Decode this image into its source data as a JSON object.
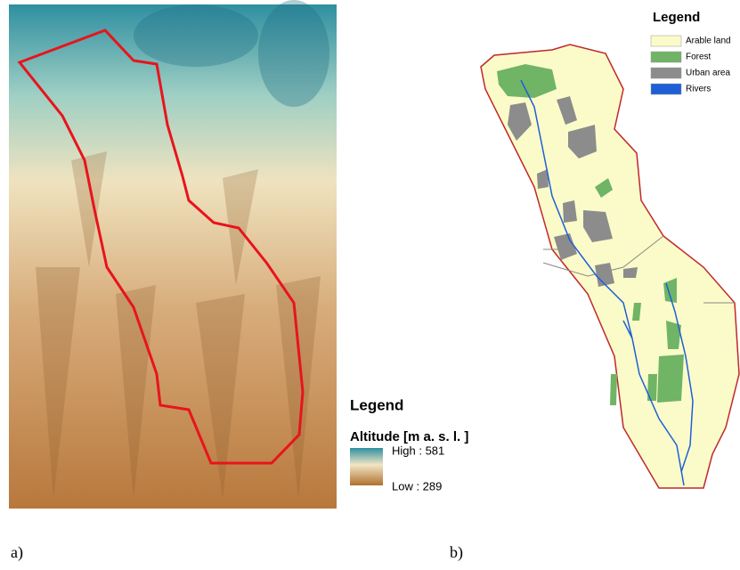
{
  "panel_a": {
    "legend_title": "Legend",
    "legend_subtitle": "Altitude [m a. s. l. ]",
    "high_label": "High : 581",
    "low_label": "Low : 289",
    "caption": "a)"
  },
  "panel_b": {
    "legend_title": "Legend",
    "legend_items": [
      {
        "label": "Arable land",
        "color": "#fbfbc9"
      },
      {
        "label": "Forest",
        "color": "#70b466"
      },
      {
        "label": "Urban area",
        "color": "#8c8c8c"
      },
      {
        "label": "Rivers",
        "color": "#1f5fd6"
      }
    ],
    "caption": "b)"
  }
}
